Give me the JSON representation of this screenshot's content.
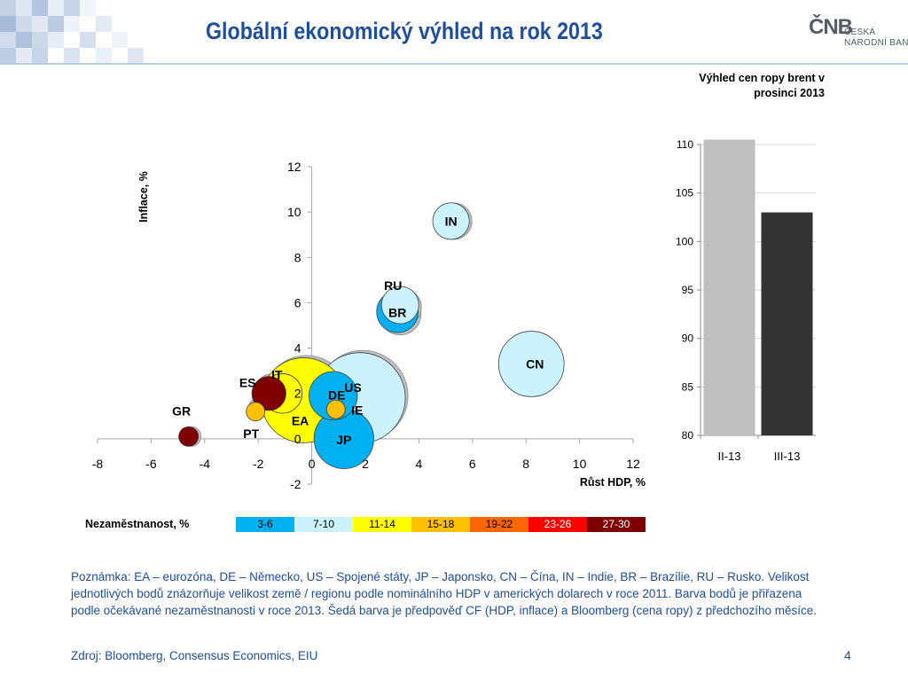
{
  "header": {
    "title": "Globální ekonomický výhled na rok 2013",
    "logo": {
      "monogram": "ČNB",
      "line1": "ČESKÁ",
      "line2": "NÁRODNÍ BANKA"
    }
  },
  "colors": {
    "title": "#1f4e9a",
    "gray_forecast": "#bfbfbf",
    "bands": [
      "#00b0f0",
      "#ccf2fb",
      "#ffff00",
      "#ffc000",
      "#ff6600",
      "#ff0000",
      "#7f0000"
    ]
  },
  "chart_data": [
    {
      "type": "scatter",
      "variant": "bubble",
      "xlabel": "Růst HDP, %",
      "ylabel": "Inflace, %",
      "xlim": [
        -8,
        12
      ],
      "ylim": [
        -2,
        12
      ],
      "xticks": [
        -8,
        -6,
        -4,
        -2,
        0,
        2,
        4,
        6,
        8,
        10,
        12
      ],
      "yticks": [
        -2,
        0,
        2,
        4,
        6,
        8,
        10,
        12
      ],
      "grid": false,
      "size_note": "bubble size = nominal GDP in USD, 2011",
      "points": [
        {
          "label": "IN",
          "x": 5.2,
          "y": 9.6,
          "size": 1.8,
          "band": 1,
          "prev_x": 5.3,
          "prev_y": 9.6
        },
        {
          "label": "RU",
          "x": 3.3,
          "y": 5.9,
          "size": 1.9,
          "band": 1,
          "prev_x": 3.4,
          "prev_y": 5.8
        },
        {
          "label": "BR",
          "x": 3.2,
          "y": 5.6,
          "size": 2.5,
          "band": 0,
          "prev_x": 3.3,
          "prev_y": 5.5
        },
        {
          "label": "CN",
          "x": 8.2,
          "y": 3.3,
          "size": 7.3,
          "band": 1
        },
        {
          "label": "US",
          "x": 1.8,
          "y": 1.8,
          "size": 15.1,
          "band": 1,
          "prev_x": 1.9,
          "prev_y": 1.9
        },
        {
          "label": "EA",
          "x": -0.3,
          "y": 1.7,
          "size": 13.1,
          "band": 2,
          "prev_x": -0.2,
          "prev_y": 1.8
        },
        {
          "label": "DE",
          "x": 0.8,
          "y": 1.9,
          "size": 3.6,
          "band": 0,
          "prev_x": 0.9,
          "prev_y": 2.0
        },
        {
          "label": "IT",
          "x": -1.1,
          "y": 2.0,
          "size": 2.2,
          "band": 2,
          "prev_x": -1.0,
          "prev_y": 2.1
        },
        {
          "label": "ES",
          "x": -1.6,
          "y": 2.0,
          "size": 1.5,
          "band": 6,
          "prev_x": -1.5,
          "prev_y": 2.1
        },
        {
          "label": "IE",
          "x": 0.9,
          "y": 1.3,
          "size": 0.25,
          "band": 3,
          "prev_x": 1.0,
          "prev_y": 1.4
        },
        {
          "label": "PT",
          "x": -2.1,
          "y": 1.2,
          "size": 0.25,
          "band": 3,
          "prev_x": -2.0,
          "prev_y": 1.4
        },
        {
          "label": "GR",
          "x": -4.6,
          "y": 0.1,
          "size": 0.3,
          "band": 6,
          "prev_x": -4.5,
          "prev_y": 0.1
        },
        {
          "label": "JP",
          "x": 1.2,
          "y": 0.0,
          "size": 5.9,
          "band": 0
        }
      ]
    },
    {
      "type": "bar",
      "title": "Výhled cen ropy brent v prosinci 2013",
      "categories": [
        "II-13",
        "III-13"
      ],
      "values": [
        110.5,
        103.0
      ],
      "bar_colors": [
        "#bfbfbf",
        "#333333"
      ],
      "ylim": [
        80,
        110
      ],
      "yticks": [
        80,
        85,
        90,
        95,
        100,
        105,
        110
      ],
      "grid": true
    }
  ],
  "legend": {
    "label": "Nezaměstnanost, %",
    "bands": [
      {
        "range": "3-6",
        "color": "#00b0f0"
      },
      {
        "range": "7-10",
        "color": "#ccf2fb"
      },
      {
        "range": "11-14",
        "color": "#ffff00"
      },
      {
        "range": "15-18",
        "color": "#ffc000"
      },
      {
        "range": "19-22",
        "color": "#ff6600"
      },
      {
        "range": "23-26",
        "color": "#ff0000"
      },
      {
        "range": "27-30",
        "color": "#7f0000"
      }
    ]
  },
  "note": "Poznámka: EA – eurozóna, DE – Německo, US – Spojené státy, JP – Japonsko, CN – Čína, IN – Indie, BR – Brazílie, RU – Rusko. Velikost jednotlivých bodů znázorňuje velikost země / regionu podle nominálního HDP v amerických dolarech v roce 2011. Barva bodů je přiřazena podle očekávané nezaměstnanosti v roce 2013. Šedá barva je předpověď CF (HDP, inflace) a Bloomberg (cena ropy) z předchozího měsíce.",
  "source": "Zdroj: Bloomberg, Consensus Economics, EIU",
  "page_number": "4"
}
